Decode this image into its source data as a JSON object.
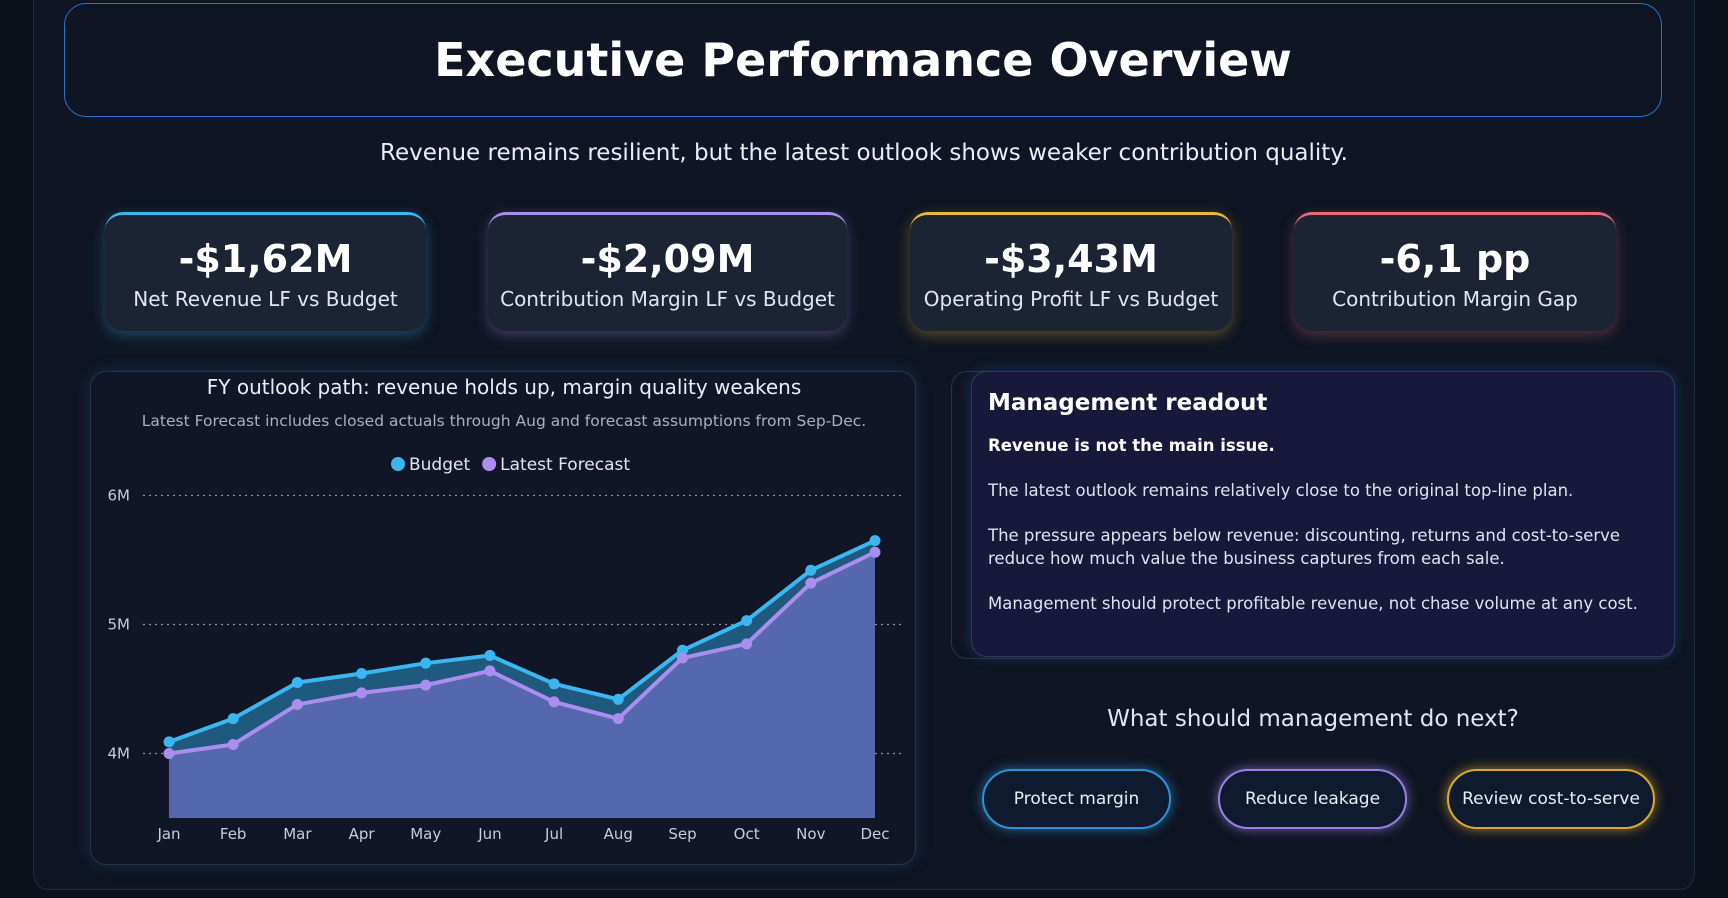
{
  "header": {
    "title": "Executive Performance Overview",
    "subtitle": "Revenue remains resilient, but the latest outlook shows weaker contribution quality."
  },
  "kpis": [
    {
      "value": "-$1,62M",
      "label": "Net Revenue LF vs Budget",
      "color": "#3bb6f0"
    },
    {
      "value": "-$2,09M",
      "label": "Contribution Margin LF vs Budget",
      "color": "#a98ef0"
    },
    {
      "value": "-$3,43M",
      "label": "Operating Profit LF vs Budget",
      "color": "#e8b83a"
    },
    {
      "value": "-6,1 pp",
      "label": "Contribution Margin Gap",
      "color": "#e56a7a"
    }
  ],
  "chart_data": {
    "type": "line",
    "title": "FY outlook path: revenue holds up, margin quality weakens",
    "subtitle": "Latest Forecast includes closed actuals through Aug and forecast assumptions from Sep-Dec.",
    "categories": [
      "Jan",
      "Feb",
      "Mar",
      "Apr",
      "May",
      "Jun",
      "Jul",
      "Aug",
      "Sep",
      "Oct",
      "Nov",
      "Dec"
    ],
    "series": [
      {
        "name": "Budget",
        "color": "#3bb6f0",
        "fill": "#1f5a7e",
        "values": [
          4090000,
          4270000,
          4550000,
          4620000,
          4700000,
          4760000,
          4540000,
          4420000,
          4800000,
          5030000,
          5420000,
          5650000
        ]
      },
      {
        "name": "Latest Forecast",
        "color": "#a98ef0",
        "fill": "#5568ad",
        "values": [
          4000000,
          4070000,
          4380000,
          4470000,
          4530000,
          4640000,
          4400000,
          4270000,
          4740000,
          4850000,
          5320000,
          5560000
        ]
      }
    ],
    "ylim": [
      3500000,
      6050000
    ],
    "yticks": [
      {
        "value": 4000000,
        "label": "4M"
      },
      {
        "value": 5000000,
        "label": "5M"
      },
      {
        "value": 6000000,
        "label": "6M"
      }
    ],
    "grid": true
  },
  "readout": {
    "title": "Management readout",
    "lead": "Revenue is not the main issue.",
    "paragraphs": [
      "The latest outlook remains relatively close to the original top-line plan.",
      "The pressure appears below revenue: discounting, returns and cost-to-serve reduce how much value the business captures from each sale.",
      "Management should protect profitable revenue, not chase volume at any cost."
    ]
  },
  "actions": {
    "title": "What should management do next?",
    "buttons": [
      {
        "label": "Protect margin",
        "color": "#2f8fd8"
      },
      {
        "label": "Reduce leakage",
        "color": "#9b7fe8"
      },
      {
        "label": "Review cost-to-serve",
        "color": "#d9a92f"
      }
    ]
  }
}
